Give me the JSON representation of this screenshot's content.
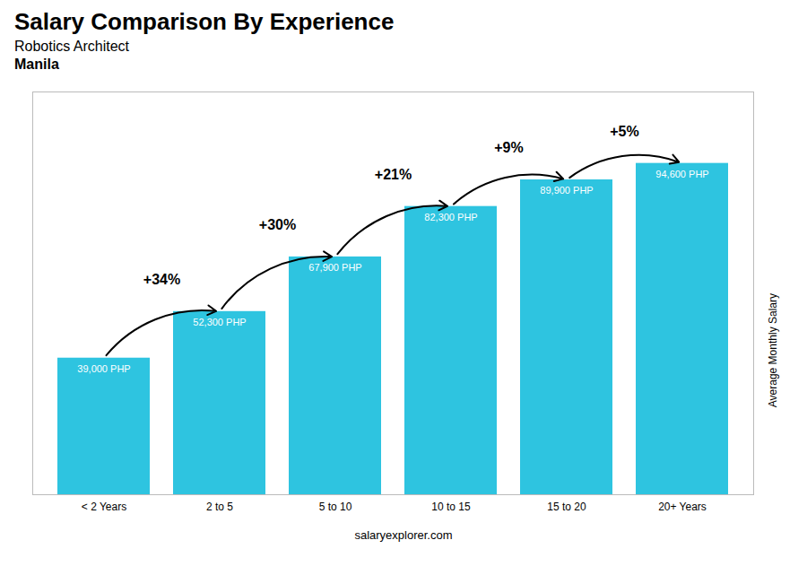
{
  "chart_data": {
    "type": "bar",
    "title": "Salary Comparison By Experience",
    "subtitle": "Robotics Architect",
    "ylabel": "Average Monthly Salary",
    "categories": [
      "< 2 Years",
      "2 to 5",
      "5 to 10",
      "10 to 15",
      "15 to 20",
      "20+ Years"
    ],
    "values": [
      39000,
      52300,
      67900,
      82300,
      89900,
      94600
    ],
    "value_labels": [
      "39,000 PHP",
      "52,300 PHP",
      "67,900 PHP",
      "82,300 PHP",
      "89,900 PHP",
      "94,600 PHP"
    ],
    "data_labels": true,
    "color": "#2ec4e0",
    "ylim": [
      0,
      115000
    ],
    "tick_labels": "x",
    "grid": false,
    "annotations": [
      {
        "text": "Manila"
      },
      {
        "text": "+34%",
        "from": "< 2 Years",
        "to": "2 to 5"
      },
      {
        "text": "+30%",
        "from": "2 to 5",
        "to": "5 to 10"
      },
      {
        "text": "+21%",
        "from": "5 to 10",
        "to": "10 to 15"
      },
      {
        "text": "+9%",
        "from": "10 to 15",
        "to": "15 to 20"
      },
      {
        "text": "+5%",
        "from": "15 to 20",
        "to": "20+ Years"
      },
      {
        "text": "salaryexplorer.com"
      }
    ]
  }
}
